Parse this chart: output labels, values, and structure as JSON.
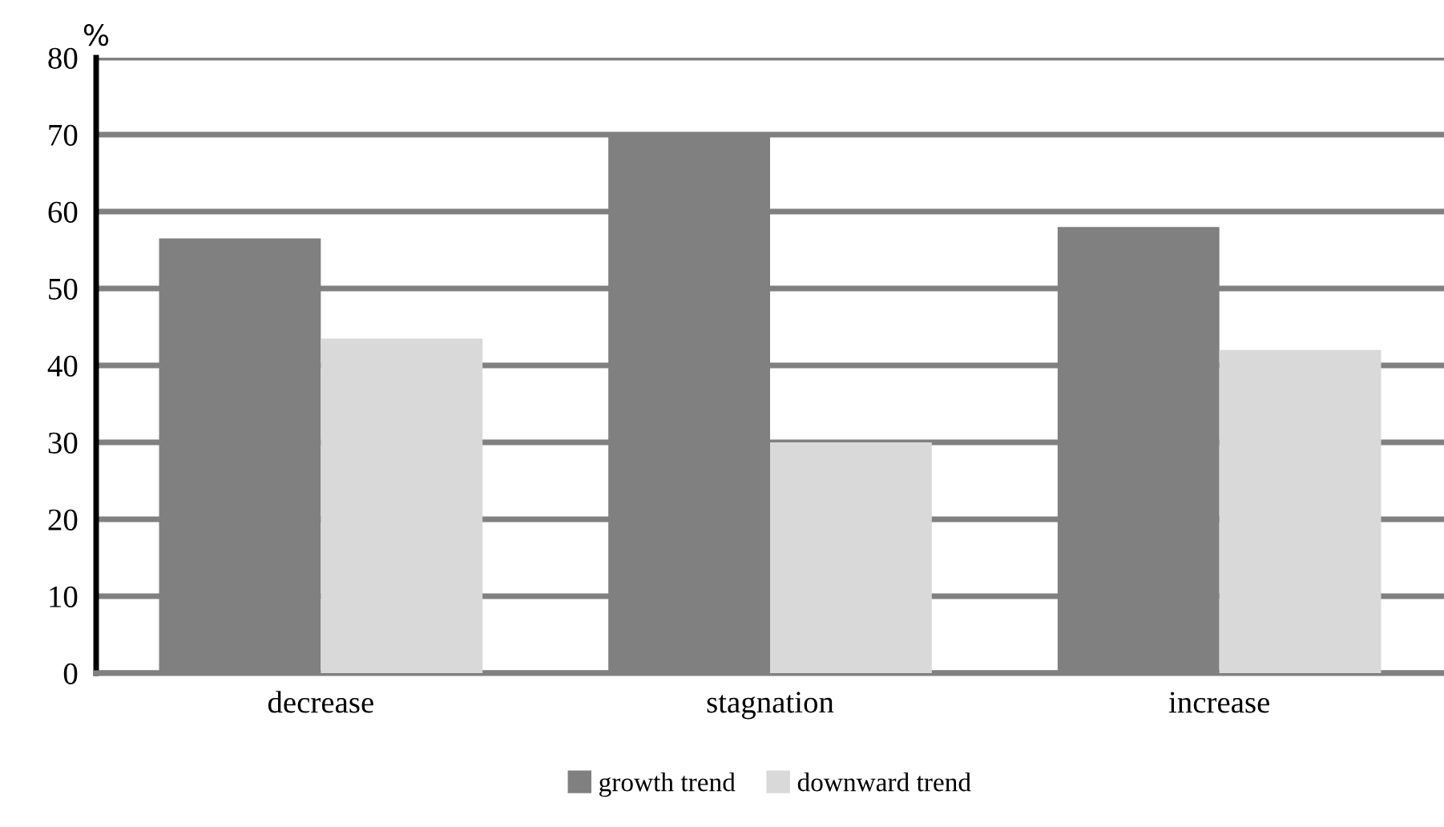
{
  "chart_data": {
    "type": "bar",
    "ylabel": "%",
    "categories": [
      "decrease",
      "stagnation",
      "increase"
    ],
    "series": [
      {
        "name": "growth trend",
        "color": "#808080",
        "values": [
          56.5,
          70,
          58
        ]
      },
      {
        "name": "downward trend",
        "color": "#d9d9d9",
        "values": [
          43.5,
          30,
          42
        ]
      }
    ],
    "ylim": [
      0,
      80
    ],
    "yticks": [
      0,
      10,
      20,
      30,
      40,
      50,
      60,
      70,
      80
    ],
    "grid": "y",
    "legend": "bottom"
  }
}
